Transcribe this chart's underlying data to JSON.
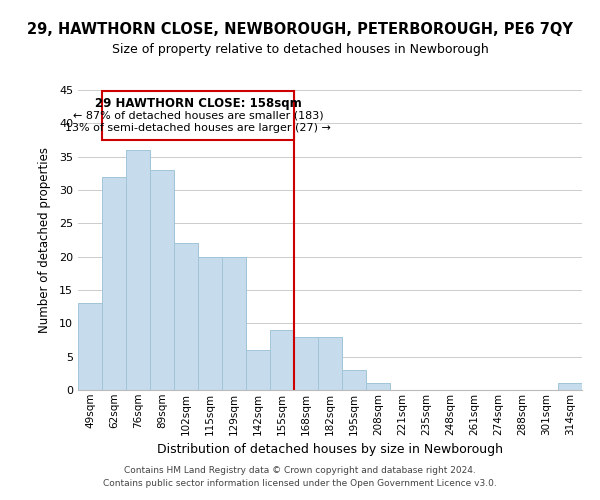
{
  "title": "29, HAWTHORN CLOSE, NEWBOROUGH, PETERBOROUGH, PE6 7QY",
  "subtitle": "Size of property relative to detached houses in Newborough",
  "xlabel": "Distribution of detached houses by size in Newborough",
  "ylabel": "Number of detached properties",
  "bin_labels": [
    "49sqm",
    "62sqm",
    "76sqm",
    "89sqm",
    "102sqm",
    "115sqm",
    "129sqm",
    "142sqm",
    "155sqm",
    "168sqm",
    "182sqm",
    "195sqm",
    "208sqm",
    "221sqm",
    "235sqm",
    "248sqm",
    "261sqm",
    "274sqm",
    "288sqm",
    "301sqm",
    "314sqm"
  ],
  "bar_heights": [
    13,
    32,
    36,
    33,
    22,
    20,
    20,
    6,
    9,
    8,
    8,
    3,
    1,
    0,
    0,
    0,
    0,
    0,
    0,
    0,
    1
  ],
  "bar_color": "#c6dcec",
  "bar_edge_color": "#a0c4d8",
  "vline_color": "#cc0000",
  "ylim": [
    0,
    45
  ],
  "yticks": [
    0,
    5,
    10,
    15,
    20,
    25,
    30,
    35,
    40,
    45
  ],
  "annotation_title": "29 HAWTHORN CLOSE: 158sqm",
  "annotation_line1": "← 87% of detached houses are smaller (183)",
  "annotation_line2": "13% of semi-detached houses are larger (27) →",
  "annotation_box_color": "#ffffff",
  "annotation_border_color": "#cc0000",
  "footer1": "Contains HM Land Registry data © Crown copyright and database right 2024.",
  "footer2": "Contains public sector information licensed under the Open Government Licence v3.0."
}
